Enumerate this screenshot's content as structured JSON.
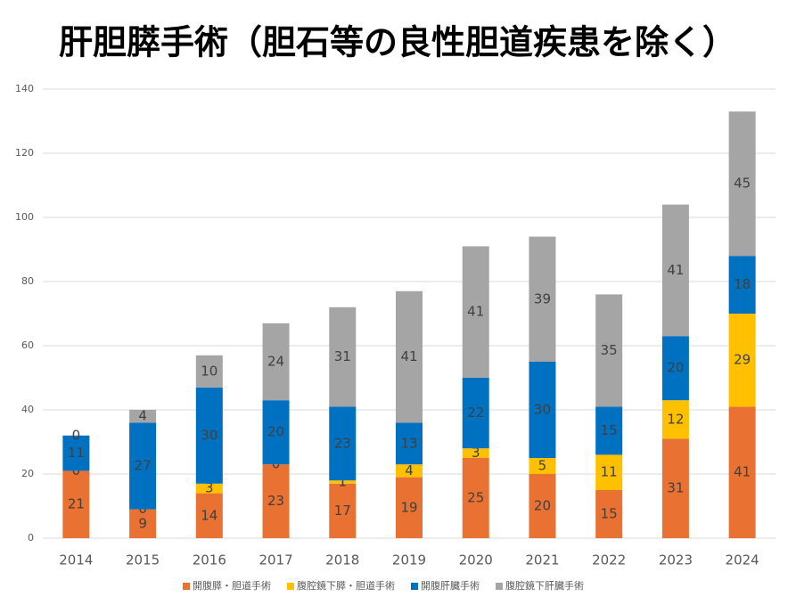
{
  "chart_data": {
    "type": "stacked-bar",
    "title": "肝胆膵手術（胆石等の良性胆道疾患を除く）",
    "categories": [
      "2014",
      "2015",
      "2016",
      "2017",
      "2018",
      "2019",
      "2020",
      "2021",
      "2022",
      "2023",
      "2024"
    ],
    "series": [
      {
        "name": "開腹膵・胆道手術",
        "color": "#E97132",
        "values": [
          21,
          9,
          14,
          23,
          17,
          19,
          25,
          20,
          15,
          31,
          41
        ]
      },
      {
        "name": "腹腔鏡下膵・胆道手術",
        "color": "#FFC000",
        "values": [
          0,
          0,
          3,
          0,
          1,
          4,
          3,
          5,
          11,
          12,
          29
        ]
      },
      {
        "name": "開腹肝臓手術",
        "color": "#0070C0",
        "values": [
          11,
          27,
          30,
          20,
          23,
          13,
          22,
          30,
          15,
          20,
          18
        ]
      },
      {
        "name": "腹腔鏡下肝臓手術",
        "color": "#A5A5A5",
        "values": [
          0,
          4,
          10,
          24,
          31,
          41,
          41,
          39,
          35,
          41,
          45
        ]
      }
    ],
    "ylim": [
      0,
      140
    ],
    "yticks": [
      0,
      20,
      40,
      60,
      80,
      100,
      120,
      140
    ],
    "grid": true,
    "legend": "bottom"
  }
}
